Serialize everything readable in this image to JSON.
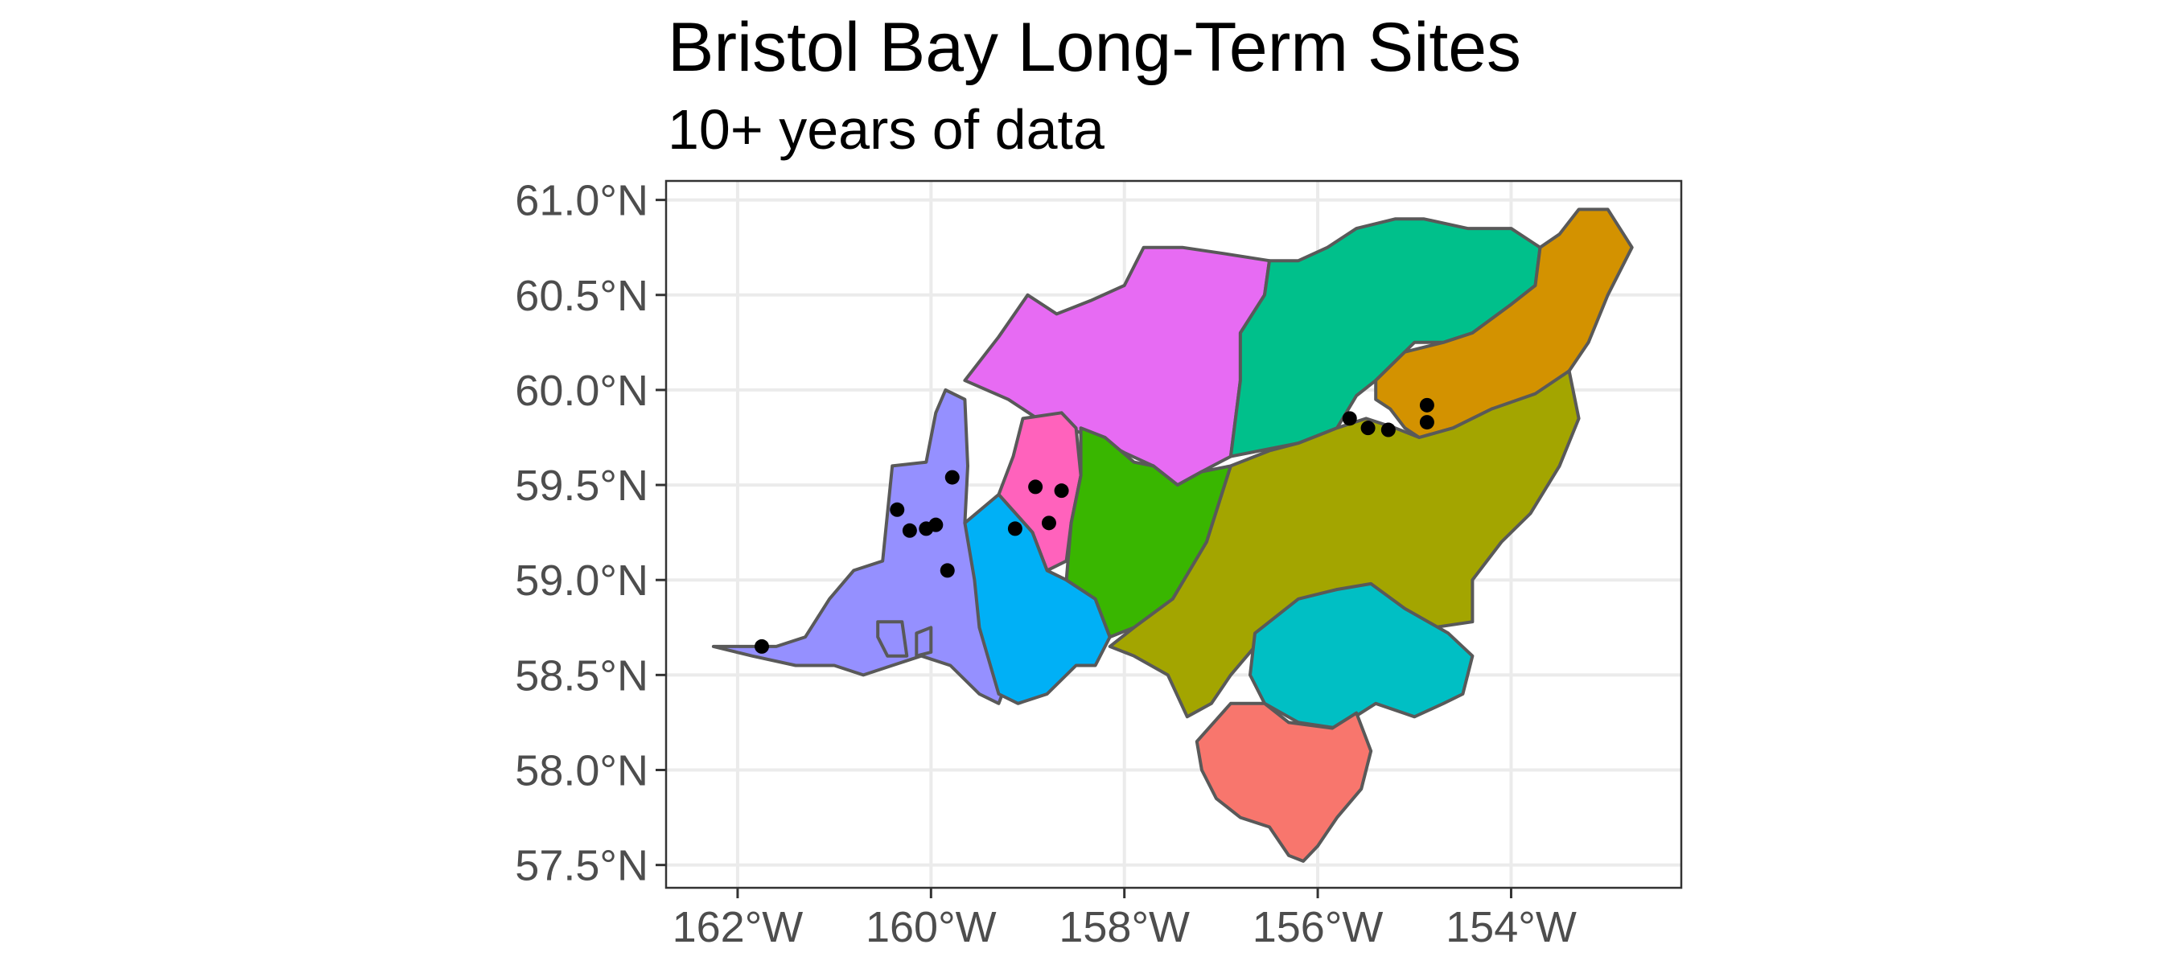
{
  "title": "Bristol Bay Long-Term Sites",
  "subtitle": "10+ years of data",
  "axes": {
    "x_ticks": [
      {
        "value": -162,
        "label": "162°W"
      },
      {
        "value": -160,
        "label": "160°W"
      },
      {
        "value": -158,
        "label": "158°W"
      },
      {
        "value": -156,
        "label": "156°W"
      },
      {
        "value": -154,
        "label": "154°W"
      }
    ],
    "y_ticks": [
      {
        "value": 61.0,
        "label": "61.0°N"
      },
      {
        "value": 60.5,
        "label": "60.5°N"
      },
      {
        "value": 60.0,
        "label": "60.0°N"
      },
      {
        "value": 59.5,
        "label": "59.5°N"
      },
      {
        "value": 59.0,
        "label": "59.0°N"
      },
      {
        "value": 58.5,
        "label": "58.5°N"
      },
      {
        "value": 58.0,
        "label": "58.0°N"
      },
      {
        "value": 57.5,
        "label": "57.5°N"
      }
    ],
    "lon_range": [
      -162.74,
      -152.24
    ],
    "lat_range": [
      57.38,
      61.1
    ],
    "grid": true
  },
  "regions": [
    {
      "color": "#9590FF",
      "outline": [
        [
          -161.6,
          58.65
        ],
        [
          -161.3,
          58.7
        ],
        [
          -161.05,
          58.9
        ],
        [
          -160.8,
          59.05
        ],
        [
          -160.5,
          59.1
        ],
        [
          -160.45,
          59.35
        ],
        [
          -160.4,
          59.6
        ],
        [
          -160.05,
          59.62
        ],
        [
          -159.95,
          59.88
        ],
        [
          -159.85,
          60.0
        ],
        [
          -159.65,
          59.95
        ],
        [
          -159.62,
          59.6
        ],
        [
          -159.65,
          59.3
        ],
        [
          -159.4,
          59.1
        ],
        [
          -159.5,
          58.9
        ],
        [
          -159.4,
          58.75
        ],
        [
          -159.15,
          58.55
        ],
        [
          -159.3,
          58.35
        ],
        [
          -159.5,
          58.4
        ],
        [
          -159.8,
          58.55
        ],
        [
          -160.1,
          58.6
        ],
        [
          -160.4,
          58.55
        ],
        [
          -160.7,
          58.5
        ],
        [
          -161.0,
          58.55
        ],
        [
          -161.4,
          58.55
        ],
        [
          -161.85,
          58.6
        ],
        [
          -162.25,
          58.65
        ]
      ]
    },
    {
      "color": "#9590FF",
      "outline": [
        [
          -160.15,
          58.72
        ],
        [
          -160.0,
          58.75
        ],
        [
          -160.0,
          58.62
        ],
        [
          -160.15,
          58.6
        ]
      ]
    },
    {
      "color": "#9590FF",
      "outline": [
        [
          -160.55,
          58.78
        ],
        [
          -160.3,
          58.78
        ],
        [
          -160.25,
          58.6
        ],
        [
          -160.45,
          58.6
        ],
        [
          -160.55,
          58.7
        ]
      ]
    },
    {
      "color": "#E76BF3",
      "outline": [
        [
          -159.3,
          60.28
        ],
        [
          -159.0,
          60.5
        ],
        [
          -158.7,
          60.4
        ],
        [
          -158.35,
          60.47
        ],
        [
          -158.0,
          60.55
        ],
        [
          -157.8,
          60.75
        ],
        [
          -157.4,
          60.75
        ],
        [
          -157.0,
          60.72
        ],
        [
          -156.5,
          60.68
        ],
        [
          -156.55,
          60.5
        ],
        [
          -156.8,
          60.3
        ],
        [
          -156.8,
          60.05
        ],
        [
          -156.9,
          59.65
        ],
        [
          -157.2,
          59.57
        ],
        [
          -157.45,
          59.5
        ],
        [
          -157.7,
          59.6
        ],
        [
          -158.0,
          59.67
        ],
        [
          -158.3,
          59.75
        ],
        [
          -158.6,
          59.8
        ],
        [
          -158.9,
          59.85
        ],
        [
          -159.2,
          59.95
        ],
        [
          -159.65,
          60.05
        ]
      ]
    },
    {
      "color": "#00C08B",
      "outline": [
        [
          -156.5,
          60.68
        ],
        [
          -156.2,
          60.68
        ],
        [
          -155.9,
          60.75
        ],
        [
          -155.6,
          60.85
        ],
        [
          -155.2,
          60.9
        ],
        [
          -154.9,
          60.9
        ],
        [
          -154.45,
          60.85
        ],
        [
          -154.0,
          60.85
        ],
        [
          -153.7,
          60.75
        ],
        [
          -153.75,
          60.55
        ],
        [
          -154.0,
          60.45
        ],
        [
          -154.4,
          60.3
        ],
        [
          -154.7,
          60.25
        ],
        [
          -155.0,
          60.25
        ],
        [
          -155.2,
          60.15
        ],
        [
          -155.4,
          60.05
        ],
        [
          -155.6,
          59.97
        ],
        [
          -155.8,
          59.8
        ],
        [
          -156.2,
          59.72
        ],
        [
          -156.6,
          59.68
        ],
        [
          -156.9,
          59.65
        ],
        [
          -156.8,
          60.05
        ],
        [
          -156.8,
          60.3
        ],
        [
          -156.55,
          60.5
        ]
      ]
    },
    {
      "color": "#D39200",
      "outline": [
        [
          -155.4,
          60.05
        ],
        [
          -155.1,
          60.2
        ],
        [
          -154.7,
          60.25
        ],
        [
          -154.4,
          60.3
        ],
        [
          -154.0,
          60.45
        ],
        [
          -153.75,
          60.55
        ],
        [
          -153.7,
          60.75
        ],
        [
          -153.5,
          60.82
        ],
        [
          -153.3,
          60.95
        ],
        [
          -153.0,
          60.95
        ],
        [
          -152.75,
          60.75
        ],
        [
          -153.0,
          60.5
        ],
        [
          -153.2,
          60.25
        ],
        [
          -153.4,
          60.1
        ],
        [
          -153.75,
          59.95
        ],
        [
          -154.2,
          59.9
        ],
        [
          -154.6,
          59.8
        ],
        [
          -154.95,
          59.75
        ],
        [
          -155.1,
          59.8
        ],
        [
          -155.25,
          59.9
        ],
        [
          -155.4,
          59.95
        ]
      ]
    },
    {
      "color": "#FF62BC",
      "outline": [
        [
          -159.05,
          59.85
        ],
        [
          -158.65,
          59.88
        ],
        [
          -158.5,
          59.8
        ],
        [
          -158.45,
          59.55
        ],
        [
          -158.55,
          59.3
        ],
        [
          -158.6,
          59.1
        ],
        [
          -158.8,
          59.05
        ],
        [
          -158.95,
          59.25
        ],
        [
          -159.3,
          59.45
        ],
        [
          -159.15,
          59.65
        ]
      ]
    },
    {
      "color": "#00B0F6",
      "outline": [
        [
          -159.3,
          59.45
        ],
        [
          -158.95,
          59.25
        ],
        [
          -158.8,
          59.05
        ],
        [
          -158.6,
          59.0
        ],
        [
          -158.3,
          58.9
        ],
        [
          -158.15,
          58.7
        ],
        [
          -158.3,
          58.55
        ],
        [
          -158.5,
          58.55
        ],
        [
          -158.8,
          58.4
        ],
        [
          -159.1,
          58.35
        ],
        [
          -159.3,
          58.4
        ],
        [
          -159.5,
          58.75
        ],
        [
          -159.55,
          59.0
        ],
        [
          -159.65,
          59.3
        ]
      ]
    },
    {
      "color": "#39B600",
      "outline": [
        [
          -158.45,
          59.8
        ],
        [
          -158.2,
          59.75
        ],
        [
          -157.9,
          59.62
        ],
        [
          -157.7,
          59.6
        ],
        [
          -157.45,
          59.5
        ],
        [
          -157.2,
          59.57
        ],
        [
          -156.9,
          59.6
        ],
        [
          -157.15,
          59.2
        ],
        [
          -157.5,
          58.9
        ],
        [
          -157.9,
          58.75
        ],
        [
          -158.15,
          58.7
        ],
        [
          -158.3,
          58.9
        ],
        [
          -158.6,
          59.0
        ],
        [
          -158.55,
          59.3
        ],
        [
          -158.45,
          59.55
        ]
      ]
    },
    {
      "color": "#A3A500",
      "outline": [
        [
          -156.9,
          59.6
        ],
        [
          -156.5,
          59.68
        ],
        [
          -156.2,
          59.72
        ],
        [
          -155.8,
          59.8
        ],
        [
          -155.5,
          59.85
        ],
        [
          -155.2,
          59.8
        ],
        [
          -154.95,
          59.75
        ],
        [
          -154.6,
          59.8
        ],
        [
          -154.2,
          59.9
        ],
        [
          -153.75,
          59.98
        ],
        [
          -153.4,
          60.1
        ],
        [
          -153.3,
          59.85
        ],
        [
          -153.5,
          59.6
        ],
        [
          -153.8,
          59.35
        ],
        [
          -154.1,
          59.2
        ],
        [
          -154.4,
          59.0
        ],
        [
          -154.4,
          58.78
        ],
        [
          -154.8,
          58.75
        ],
        [
          -155.3,
          58.88
        ],
        [
          -155.8,
          58.95
        ],
        [
          -156.2,
          58.8
        ],
        [
          -156.65,
          58.65
        ],
        [
          -156.9,
          58.5
        ],
        [
          -157.1,
          58.35
        ],
        [
          -157.35,
          58.28
        ],
        [
          -157.55,
          58.5
        ],
        [
          -157.9,
          58.6
        ],
        [
          -158.15,
          58.65
        ],
        [
          -157.9,
          58.75
        ],
        [
          -157.5,
          58.9
        ],
        [
          -157.15,
          59.2
        ]
      ]
    },
    {
      "color": "#00BFC4",
      "outline": [
        [
          -156.65,
          58.72
        ],
        [
          -156.2,
          58.9
        ],
        [
          -155.8,
          58.95
        ],
        [
          -155.45,
          58.98
        ],
        [
          -155.1,
          58.85
        ],
        [
          -154.65,
          58.72
        ],
        [
          -154.4,
          58.6
        ],
        [
          -154.5,
          58.4
        ],
        [
          -154.7,
          58.35
        ],
        [
          -155.0,
          58.28
        ],
        [
          -155.4,
          58.35
        ],
        [
          -155.8,
          58.22
        ],
        [
          -156.2,
          58.25
        ],
        [
          -156.55,
          58.35
        ],
        [
          -156.7,
          58.5
        ]
      ]
    },
    {
      "color": "#F8766D",
      "outline": [
        [
          -157.25,
          58.15
        ],
        [
          -156.9,
          58.35
        ],
        [
          -156.55,
          58.35
        ],
        [
          -156.3,
          58.25
        ],
        [
          -155.85,
          58.22
        ],
        [
          -155.6,
          58.3
        ],
        [
          -155.45,
          58.1
        ],
        [
          -155.55,
          57.9
        ],
        [
          -155.8,
          57.75
        ],
        [
          -156.0,
          57.6
        ],
        [
          -156.15,
          57.52
        ],
        [
          -156.3,
          57.55
        ],
        [
          -156.5,
          57.7
        ],
        [
          -156.8,
          57.75
        ],
        [
          -157.05,
          57.85
        ],
        [
          -157.2,
          58.0
        ]
      ]
    }
  ],
  "sites": [
    {
      "lon": -161.75,
      "lat": 58.65
    },
    {
      "lon": -160.35,
      "lat": 59.37
    },
    {
      "lon": -160.22,
      "lat": 59.26
    },
    {
      "lon": -160.05,
      "lat": 59.27
    },
    {
      "lon": -159.95,
      "lat": 59.29
    },
    {
      "lon": -159.78,
      "lat": 59.54
    },
    {
      "lon": -159.83,
      "lat": 59.05
    },
    {
      "lon": -159.13,
      "lat": 59.27
    },
    {
      "lon": -158.92,
      "lat": 59.49
    },
    {
      "lon": -158.65,
      "lat": 59.47
    },
    {
      "lon": -158.78,
      "lat": 59.3
    },
    {
      "lon": -155.67,
      "lat": 59.85
    },
    {
      "lon": -155.48,
      "lat": 59.8
    },
    {
      "lon": -155.27,
      "lat": 59.79
    },
    {
      "lon": -154.87,
      "lat": 59.92
    },
    {
      "lon": -154.87,
      "lat": 59.83
    }
  ]
}
